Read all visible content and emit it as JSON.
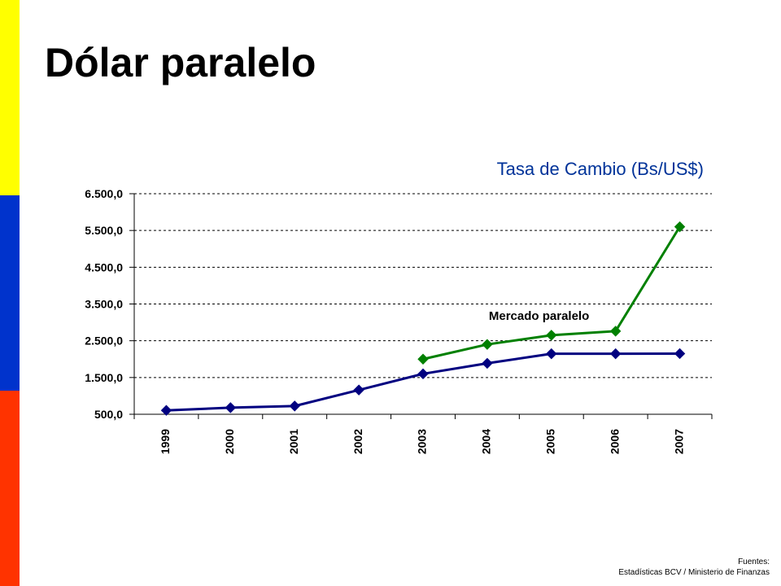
{
  "page": {
    "title": "Dólar paralelo",
    "source_line1": "Fuentes:",
    "source_line2": "Estadísticas BCV / Ministerio de Finanzas"
  },
  "colors": {
    "stripe_top": "#FFFF00",
    "stripe_middle": "#0033CC",
    "stripe_bottom": "#FF3300",
    "title_accent": "#003399"
  },
  "chart_data": {
    "type": "line",
    "title": "Tasa de Cambio (Bs/US$)",
    "xlabel": "",
    "ylabel": "",
    "categories": [
      "1999",
      "2000",
      "2001",
      "2002",
      "2003",
      "2004",
      "2005",
      "2006",
      "2007"
    ],
    "ylim": [
      500,
      6500
    ],
    "yticks": [
      500,
      1500,
      2500,
      3500,
      4500,
      5500,
      6500
    ],
    "ytick_labels": [
      "500,0",
      "1.500,0",
      "2.500,0",
      "3.500,0",
      "4.500,0",
      "5.500,0",
      "6.500,0"
    ],
    "grid": "horizontal dashed",
    "series": [
      {
        "name": "",
        "color": "#000080",
        "marker": "diamond",
        "values": [
          606,
          680,
          724,
          1161,
          1600,
          1886,
          2147,
          2147,
          2150
        ]
      },
      {
        "name": "Mercado paralelo",
        "color": "#008000",
        "marker": "diamond",
        "values": [
          null,
          null,
          null,
          null,
          2000,
          2400,
          2650,
          2760,
          5600
        ]
      }
    ],
    "annotations": [
      {
        "text": "Mercado paralelo",
        "series": 1
      }
    ]
  }
}
